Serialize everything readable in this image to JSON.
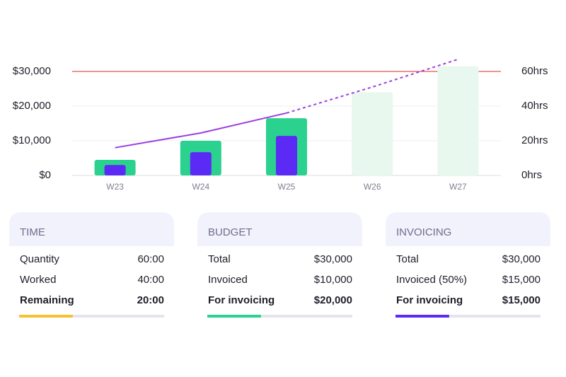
{
  "chart_data": {
    "type": "bar",
    "categories": [
      "W23",
      "W24",
      "W25",
      "W26",
      "W27"
    ],
    "series": [
      {
        "color": "#2bd18e",
        "values": [
          4500,
          10000,
          16500,
          null,
          null
        ]
      },
      {
        "color": "#e8f8ee",
        "values": [
          null,
          null,
          null,
          24000,
          31500
        ]
      },
      {
        "color": "#5b2bf5",
        "values": [
          3000,
          6700,
          11400,
          null,
          null
        ],
        "inner": true
      },
      {
        "type": "line",
        "axis": "y2",
        "color": "#9b3fe0",
        "values": [
          16,
          24.5,
          36,
          null,
          null
        ]
      },
      {
        "type": "line",
        "axis": "y2",
        "color": "#9b3fe0",
        "dashed": true,
        "values": [
          null,
          null,
          36,
          51,
          67
        ]
      }
    ],
    "ylim": [
      0,
      30000
    ],
    "yticks": [
      {
        "value": 0,
        "label": "$0"
      },
      {
        "value": 10000,
        "label": "$10,000"
      },
      {
        "value": 20000,
        "label": "$20,000"
      },
      {
        "value": 30000,
        "label": "$30,000"
      }
    ],
    "y2lim": [
      0,
      60
    ],
    "y2ticks": [
      {
        "value": 0,
        "label": "0hrs"
      },
      {
        "value": 20,
        "label": "20hrs"
      },
      {
        "value": 40,
        "label": "40hrs"
      },
      {
        "value": 60,
        "label": "60hrs"
      }
    ],
    "reference_line": {
      "value": 30000,
      "color": "#e8706e"
    },
    "grid": true
  },
  "cards": [
    {
      "title": "TIME",
      "rows": [
        [
          "Quantity",
          "60:00"
        ],
        [
          "Worked",
          "40:00"
        ],
        [
          "Remaining",
          "20:00"
        ]
      ],
      "progress": 37,
      "color": "#f5c232"
    },
    {
      "title": "BUDGET",
      "rows": [
        [
          "Total",
          "$30,000"
        ],
        [
          "Invoiced",
          "$10,000"
        ],
        [
          "For invoicing",
          "$20,000"
        ]
      ],
      "progress": 37,
      "color": "#2bd18e"
    },
    {
      "title": "INVOICING",
      "rows": [
        [
          "Total",
          "$30,000"
        ],
        [
          "Invoiced (50%)",
          "$15,000"
        ],
        [
          "For invoicing",
          "$15,000"
        ]
      ],
      "progress": 37,
      "color": "#5b2bf5"
    }
  ]
}
